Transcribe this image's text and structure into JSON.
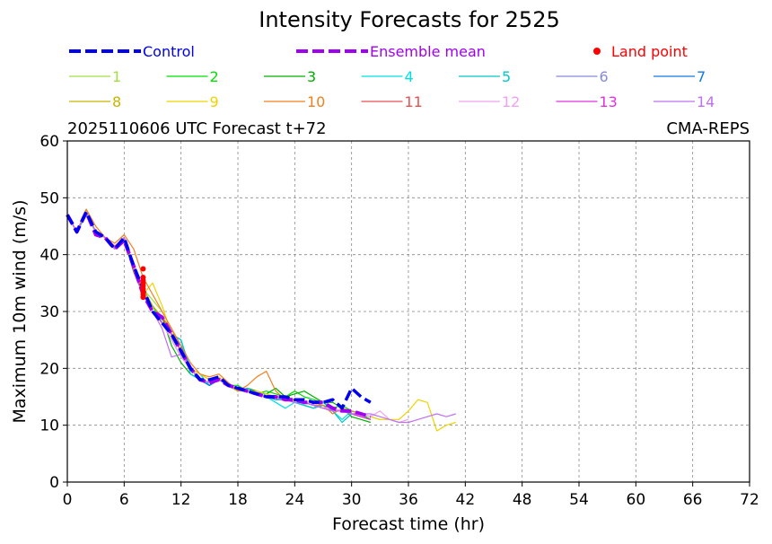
{
  "chart_data": {
    "type": "line",
    "title": "Intensity Forecasts for 2525",
    "subtitle_left": "2025110606 UTC Forecast t+72",
    "subtitle_right": "CMA-REPS",
    "xlabel": "Forecast time (hr)",
    "ylabel": "Maximum 10m wind (m/s)",
    "xlim": [
      0,
      72
    ],
    "ylim": [
      0,
      60
    ],
    "xticks": [
      0,
      6,
      12,
      18,
      24,
      30,
      36,
      42,
      48,
      54,
      60,
      66,
      72
    ],
    "yticks": [
      0,
      10,
      20,
      30,
      40,
      50,
      60
    ],
    "grid": true,
    "legend": {
      "control": {
        "name": "Control",
        "color": "#0000ee"
      },
      "mean": {
        "name": "Ensemble mean",
        "color": "#a000f0"
      },
      "land": {
        "name": "Land point",
        "color": "#ff0000"
      }
    },
    "control": {
      "x": [
        0,
        1,
        2,
        3,
        4,
        5,
        6,
        7,
        8,
        9,
        10,
        11,
        12,
        13,
        14,
        15,
        16,
        17,
        18,
        19,
        20,
        21,
        22,
        23,
        24,
        25,
        26,
        27,
        28,
        29,
        30,
        31,
        32
      ],
      "values": [
        47,
        44,
        47.5,
        44,
        43,
        41,
        43,
        38,
        34,
        30,
        28,
        26,
        23,
        20,
        18,
        18,
        18.5,
        17,
        16.5,
        16,
        15.5,
        15,
        15,
        15,
        14.5,
        14.5,
        14,
        14,
        14.5,
        13,
        16.5,
        15,
        14
      ]
    },
    "mean": {
      "x": [
        0,
        1,
        2,
        3,
        4,
        5,
        6,
        7,
        8,
        9,
        10,
        11,
        12,
        13,
        14,
        15,
        16,
        17,
        18,
        19,
        20,
        21,
        22,
        23,
        24,
        25,
        26,
        27,
        28,
        29,
        30,
        31,
        32
      ],
      "values": [
        47,
        44,
        47.5,
        43.5,
        43,
        41,
        42.5,
        38,
        33,
        30,
        29,
        26,
        23,
        20,
        18,
        17.5,
        18,
        17,
        16.5,
        16,
        15.5,
        15,
        15,
        14.5,
        14.5,
        14,
        14,
        14,
        13,
        12.5,
        12.5,
        12,
        11.5
      ]
    },
    "land_points": {
      "x": [
        8,
        8,
        8,
        8,
        8,
        8,
        8,
        8,
        8
      ],
      "values": [
        37.5,
        36,
        35.5,
        35,
        34.5,
        34,
        33.5,
        33,
        32.5
      ]
    },
    "members": [
      {
        "name": "1",
        "color": "#a0e040",
        "x": [
          0,
          1,
          2,
          3,
          4,
          5,
          6,
          7,
          8,
          9,
          10,
          11,
          12,
          13,
          14,
          15,
          16,
          17,
          18,
          19,
          20,
          21,
          22,
          23,
          24,
          25,
          26,
          27,
          28,
          29,
          30,
          31,
          32,
          33
        ],
        "values": [
          47,
          44,
          48,
          44,
          43,
          41,
          43,
          37,
          34,
          32,
          30,
          27,
          23,
          20,
          18,
          17,
          18,
          17,
          16.5,
          16,
          15.5,
          15,
          14.5,
          15,
          14,
          13.5,
          13,
          13.5,
          13,
          12.5,
          12,
          12,
          11.5,
          11
        ]
      },
      {
        "name": "2",
        "color": "#00e000",
        "x": [
          0,
          1,
          2,
          3,
          4,
          5,
          6,
          7,
          8,
          9,
          10,
          11,
          12,
          13,
          14,
          15,
          16,
          17,
          18,
          19,
          20,
          21,
          22,
          23,
          24,
          25,
          26,
          27,
          28,
          29,
          30,
          31,
          32
        ],
        "values": [
          47,
          44,
          47.5,
          44,
          43,
          41,
          43,
          38,
          33,
          31,
          28,
          25,
          22,
          20,
          18,
          17.5,
          18,
          17,
          17,
          16,
          15.5,
          16,
          15.5,
          15,
          16,
          15,
          14.5,
          14,
          13,
          13.5,
          12.5,
          12,
          11
        ]
      },
      {
        "name": "3",
        "color": "#00b000",
        "x": [
          0,
          1,
          2,
          3,
          4,
          5,
          6,
          7,
          8,
          9,
          10,
          11,
          12,
          13,
          14,
          15,
          16,
          17,
          18,
          19,
          20,
          21,
          22,
          23,
          24,
          25,
          26,
          27,
          28,
          29,
          30,
          31,
          32
        ],
        "values": [
          47,
          44,
          47,
          44,
          43,
          41,
          42.5,
          37,
          34,
          31,
          29,
          24,
          21,
          19,
          18,
          17,
          18,
          17,
          16,
          16.5,
          16,
          15.5,
          16.5,
          15,
          15.5,
          16,
          15,
          14,
          14,
          13,
          11.5,
          11,
          10.5
        ]
      },
      {
        "name": "4",
        "color": "#00e0e0",
        "x": [
          0,
          1,
          2,
          3,
          4,
          5,
          6,
          7,
          8,
          9,
          10,
          11,
          12,
          13,
          14,
          15,
          16,
          17,
          18,
          19,
          20,
          21,
          22,
          23,
          24,
          25,
          26,
          27,
          28,
          29,
          30,
          31,
          32
        ],
        "values": [
          47,
          44,
          47.5,
          44,
          43,
          41,
          43,
          37,
          33,
          30,
          28,
          26,
          25,
          20,
          19,
          17,
          18,
          17,
          16.5,
          16,
          15.5,
          15,
          14,
          13,
          14,
          13.5,
          13,
          14,
          12.5,
          11,
          12.5,
          12,
          11.5
        ]
      },
      {
        "name": "5",
        "color": "#00c8c8",
        "x": [
          0,
          1,
          2,
          3,
          4,
          5,
          6,
          7,
          8,
          9,
          10,
          11,
          12,
          13,
          14,
          15,
          16,
          17,
          18,
          19,
          20,
          21,
          22,
          23,
          24,
          25,
          26,
          27,
          28,
          29,
          30,
          31,
          32
        ],
        "values": [
          47,
          44,
          47,
          44,
          43,
          41,
          43,
          37,
          33,
          30,
          28,
          26,
          25,
          19,
          18,
          17,
          18,
          17,
          16,
          16.5,
          15.5,
          15.5,
          15,
          14.5,
          14,
          13.5,
          13,
          13.5,
          12.5,
          10.5,
          12,
          11.5,
          11
        ]
      },
      {
        "name": "6",
        "color": "#8888e0",
        "x": [
          0,
          1,
          2,
          3,
          4,
          5,
          6,
          7,
          8,
          9,
          10,
          11,
          12,
          13,
          14,
          15,
          16,
          17,
          18,
          19,
          20,
          21,
          22,
          23,
          24,
          25,
          26,
          27,
          28,
          29,
          30,
          31,
          32
        ],
        "values": [
          47,
          44,
          47.5,
          44,
          43,
          41,
          43,
          38,
          33,
          30,
          29,
          26,
          23,
          20,
          18,
          17.5,
          18,
          17,
          16.5,
          16,
          15.5,
          15,
          15,
          14.5,
          14,
          14,
          13.5,
          13,
          13,
          12.5,
          12,
          12,
          11.5
        ]
      },
      {
        "name": "7",
        "color": "#1478e6",
        "x": [
          0,
          1,
          2,
          3,
          4,
          5,
          6,
          7,
          8,
          9,
          10,
          11,
          12,
          13,
          14,
          15,
          16,
          17,
          18,
          19,
          20,
          21,
          22,
          23,
          24,
          25,
          26,
          27,
          28,
          29,
          30,
          31,
          32
        ],
        "values": [
          47,
          44,
          47.5,
          44,
          43,
          41,
          43,
          37,
          33,
          30,
          28,
          26,
          24,
          20,
          18,
          17,
          18,
          17,
          16.5,
          16,
          15.5,
          15,
          14.5,
          14.5,
          14,
          14,
          13.5,
          13,
          12.5,
          12.5,
          12,
          11.5,
          11
        ]
      },
      {
        "name": "8",
        "color": "#c8b400",
        "x": [
          0,
          1,
          2,
          3,
          4,
          5,
          6,
          7,
          8,
          9,
          10,
          11,
          12,
          13,
          14,
          15,
          16,
          17,
          18,
          19,
          20,
          21,
          22,
          23,
          24,
          25,
          26,
          27,
          28,
          29,
          30,
          31,
          32
        ],
        "values": [
          47,
          44,
          47.5,
          44,
          43,
          41,
          43,
          38,
          34,
          31,
          29,
          27,
          23,
          20,
          19,
          18,
          18,
          17,
          16,
          16,
          15.5,
          15,
          15,
          14.5,
          14,
          14,
          13.5,
          13,
          12.5,
          12.5,
          12,
          11.5,
          11
        ]
      },
      {
        "name": "9",
        "color": "#f0d200",
        "x": [
          0,
          1,
          2,
          3,
          4,
          5,
          6,
          7,
          8,
          9,
          10,
          11,
          12,
          13,
          14,
          15,
          16,
          17,
          18,
          19,
          20,
          21,
          22,
          23,
          24,
          25,
          26,
          27,
          28,
          29,
          30,
          31,
          32,
          33,
          34,
          35,
          36,
          37,
          38,
          39,
          40,
          41
        ],
        "values": [
          47,
          44,
          47.5,
          44,
          43,
          41,
          43,
          38,
          33,
          35,
          31,
          26,
          23,
          20,
          19,
          18,
          18.5,
          17,
          16.5,
          16,
          16,
          15.5,
          15,
          15,
          14.5,
          14,
          13.5,
          13,
          13,
          12.5,
          12,
          12,
          11.5,
          11,
          11,
          11,
          12.5,
          14.5,
          14,
          9,
          10,
          10.5
        ]
      },
      {
        "name": "10",
        "color": "#f08020",
        "x": [
          0,
          1,
          2,
          3,
          4,
          5,
          6,
          7,
          8,
          9,
          10,
          11,
          12,
          13,
          14,
          15,
          16,
          17,
          18,
          19,
          20,
          21,
          22,
          23,
          24,
          25,
          26,
          27,
          28,
          29,
          30,
          31,
          32
        ],
        "values": [
          47,
          44,
          48,
          45,
          43,
          42,
          43.5,
          41,
          36,
          33,
          30,
          27,
          24,
          21,
          19,
          18.5,
          19,
          17.5,
          16,
          17,
          18.5,
          19.5,
          16,
          14.5,
          14,
          14,
          13.5,
          13.5,
          12,
          13,
          12.5,
          12,
          11.5
        ]
      },
      {
        "name": "11",
        "color": "#e85050",
        "x": [
          0,
          1,
          2,
          3,
          4,
          5,
          6,
          7,
          8,
          9,
          10,
          11,
          12,
          13,
          14,
          15,
          16,
          17,
          18,
          19,
          20,
          21,
          22,
          23,
          24,
          25,
          26,
          27,
          28,
          29,
          30,
          31,
          32
        ],
        "values": [
          47,
          44,
          47.5,
          44,
          43,
          41.5,
          43,
          37,
          33,
          30,
          29,
          26,
          23,
          20,
          18,
          17.5,
          18,
          17,
          16.5,
          16,
          15.5,
          15,
          15,
          14.5,
          14.5,
          14,
          13.5,
          13,
          12.5,
          12.5,
          12,
          11.5,
          11
        ]
      },
      {
        "name": "12",
        "color": "#f0a0f0",
        "x": [
          0,
          1,
          2,
          3,
          4,
          5,
          6,
          7,
          8,
          9,
          10,
          11,
          12,
          13,
          14,
          15,
          16,
          17,
          18,
          19,
          20,
          21,
          22,
          23,
          24,
          25,
          26,
          27,
          28,
          29,
          30,
          31,
          32,
          33,
          34,
          35,
          36
        ],
        "values": [
          47,
          44,
          47.5,
          44,
          43,
          41,
          43,
          38,
          34,
          30,
          28,
          25,
          22,
          20,
          18,
          17.5,
          18,
          17,
          16.5,
          16,
          15.5,
          15,
          15,
          14.5,
          14,
          14,
          13.5,
          13,
          13,
          12.5,
          12,
          12,
          11.5,
          12.5,
          11,
          10.5,
          11
        ]
      },
      {
        "name": "13",
        "color": "#e030e0",
        "x": [
          0,
          1,
          2,
          3,
          4,
          5,
          6,
          7,
          8,
          9,
          10,
          11,
          12,
          13,
          14,
          15,
          16,
          17,
          18,
          19,
          20,
          21,
          22,
          23,
          24,
          25,
          26,
          27,
          28,
          29,
          30,
          31,
          32
        ],
        "values": [
          47,
          44,
          47.5,
          44,
          43,
          41,
          43,
          38,
          33,
          30,
          28,
          26,
          23,
          20,
          18,
          17.5,
          18,
          17,
          16.5,
          16,
          15.5,
          15,
          15,
          14.5,
          14,
          14,
          13.5,
          13,
          12.5,
          12.5,
          12,
          11.5,
          11
        ]
      },
      {
        "name": "14",
        "color": "#c070f0",
        "x": [
          0,
          1,
          2,
          3,
          4,
          5,
          6,
          7,
          8,
          9,
          10,
          11,
          12,
          13,
          14,
          15,
          16,
          17,
          18,
          19,
          20,
          21,
          22,
          23,
          24,
          25,
          26,
          27,
          28,
          29,
          30,
          31,
          32,
          33,
          34,
          35,
          36,
          37,
          38,
          39,
          40,
          41
        ],
        "values": [
          47,
          44,
          47.5,
          44,
          43,
          41,
          43,
          38,
          33,
          30,
          27,
          22,
          22.5,
          20,
          18,
          17.5,
          18,
          17,
          16.5,
          16,
          15.5,
          15,
          15,
          14.5,
          14,
          14,
          13.5,
          13,
          12.5,
          12.5,
          12,
          12,
          12,
          11.5,
          11,
          10.5,
          10.5,
          11,
          11.5,
          12,
          11.5,
          12
        ]
      }
    ]
  }
}
